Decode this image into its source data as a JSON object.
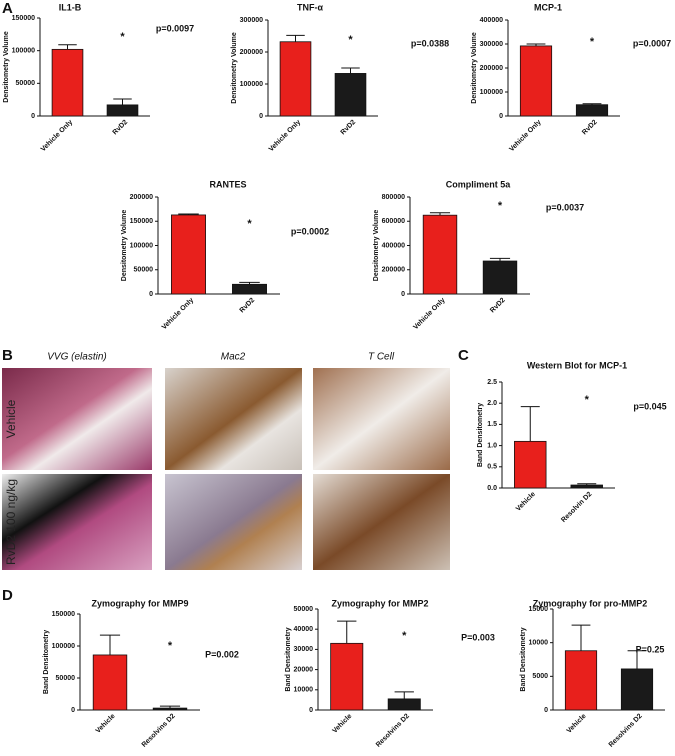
{
  "panels": {
    "letters": [
      "A",
      "B",
      "C",
      "D"
    ],
    "histology": {
      "columns": [
        "VVG (elastin)",
        "Mac2",
        "T Cell"
      ],
      "rows": [
        "Vehicle",
        "RvD2 100 ng/kg"
      ]
    }
  },
  "chart_data": [
    {
      "type": "bar",
      "title": "IL1-B",
      "ylabel": "Densitometry Volume",
      "categories": [
        "Vehicle Only",
        "RvD2"
      ],
      "values": [
        102000,
        17000
      ],
      "errors": [
        7000,
        9000
      ],
      "colors": [
        "#e8201c",
        "#1a1a1a"
      ],
      "ylim": [
        0,
        150000
      ],
      "yticks": [
        0,
        50000,
        100000,
        150000
      ],
      "significance": "*",
      "p_value": "p=0.0097"
    },
    {
      "type": "bar",
      "title": "TNF-α",
      "ylabel": "Densitometry Volume",
      "categories": [
        "Vehicle Only",
        "RvD2"
      ],
      "values": [
        232000,
        133000
      ],
      "errors": [
        20000,
        17000
      ],
      "colors": [
        "#e8201c",
        "#1a1a1a"
      ],
      "ylim": [
        0,
        300000
      ],
      "yticks": [
        0,
        100000,
        200000,
        300000
      ],
      "significance": "*",
      "p_value": "p=0.0388"
    },
    {
      "type": "bar",
      "title": "MCP-1",
      "ylabel": "Densitometry Volume",
      "categories": [
        "Vehicle Only",
        "RvD2"
      ],
      "values": [
        292000,
        47000
      ],
      "errors": [
        8000,
        4000
      ],
      "colors": [
        "#e8201c",
        "#1a1a1a"
      ],
      "ylim": [
        0,
        400000
      ],
      "yticks": [
        0,
        100000,
        200000,
        300000,
        400000
      ],
      "significance": "*",
      "p_value": "p=0.0007"
    },
    {
      "type": "bar",
      "title": "RANTES",
      "ylabel": "Densitometry Volume",
      "categories": [
        "Vehicle Only",
        "RvD2"
      ],
      "values": [
        163000,
        20000
      ],
      "errors": [
        2000,
        4000
      ],
      "colors": [
        "#e8201c",
        "#1a1a1a"
      ],
      "ylim": [
        0,
        200000
      ],
      "yticks": [
        0,
        50000,
        100000,
        150000,
        200000
      ],
      "significance": "*",
      "p_value": "p=0.0002"
    },
    {
      "type": "bar",
      "title": "Compliment 5a",
      "ylabel": "Densitometry Volume",
      "categories": [
        "Vehicle Only",
        "RvD2"
      ],
      "values": [
        650000,
        272000
      ],
      "errors": [
        20000,
        22000
      ],
      "colors": [
        "#e8201c",
        "#1a1a1a"
      ],
      "ylim": [
        0,
        800000
      ],
      "yticks": [
        0,
        200000,
        400000,
        600000,
        800000
      ],
      "significance": "*",
      "p_value": "p=0.0037"
    },
    {
      "type": "bar",
      "title": "Western Blot for MCP-1",
      "ylabel": "Band Densitometry",
      "categories": [
        "Vehicle",
        "Resolvin D2"
      ],
      "values": [
        1.1,
        0.07
      ],
      "errors": [
        0.82,
        0.03
      ],
      "colors": [
        "#e8201c",
        "#1a1a1a"
      ],
      "ylim": [
        0,
        2.5
      ],
      "yticks": [
        {
          "value": 0,
          "label": "0.0"
        },
        0.5,
        {
          "value": 1,
          "label": "1.0"
        },
        1.5,
        {
          "value": 2,
          "label": "2.0"
        },
        2.5
      ],
      "significance": "*",
      "p_value": "p=0.045"
    },
    {
      "type": "bar",
      "title": "Zymography for MMP9",
      "ylabel": "Band Densitometry",
      "categories": [
        "Vehicle",
        "Resolvins D2"
      ],
      "values": [
        86000,
        3000
      ],
      "errors": [
        31000,
        3000
      ],
      "colors": [
        "#e8201c",
        "#1a1a1a"
      ],
      "ylim": [
        0,
        150000
      ],
      "yticks": [
        0,
        50000,
        100000,
        150000
      ],
      "significance": "*",
      "p_value": "P=0.002"
    },
    {
      "type": "bar",
      "title": "Zymography for MMP2",
      "ylabel": "Band Densitometry",
      "categories": [
        "Vehicle",
        "Resolvins D2"
      ],
      "values": [
        33000,
        5500
      ],
      "errors": [
        11000,
        3500
      ],
      "colors": [
        "#e8201c",
        "#1a1a1a"
      ],
      "ylim": [
        0,
        50000
      ],
      "yticks": [
        0,
        10000,
        20000,
        30000,
        40000,
        50000
      ],
      "significance": "*",
      "p_value": "P=0.003"
    },
    {
      "type": "bar",
      "title": "Zymography for pro-MMP2",
      "ylabel": "Band Densitometry",
      "categories": [
        "Vehicle",
        "Resolvins D2"
      ],
      "values": [
        8800,
        6100
      ],
      "errors": [
        3800,
        2700
      ],
      "colors": [
        "#e8201c",
        "#1a1a1a"
      ],
      "ylim": [
        0,
        15000
      ],
      "yticks": [
        0,
        5000,
        10000,
        15000
      ],
      "p_value": "P=0.25"
    }
  ]
}
